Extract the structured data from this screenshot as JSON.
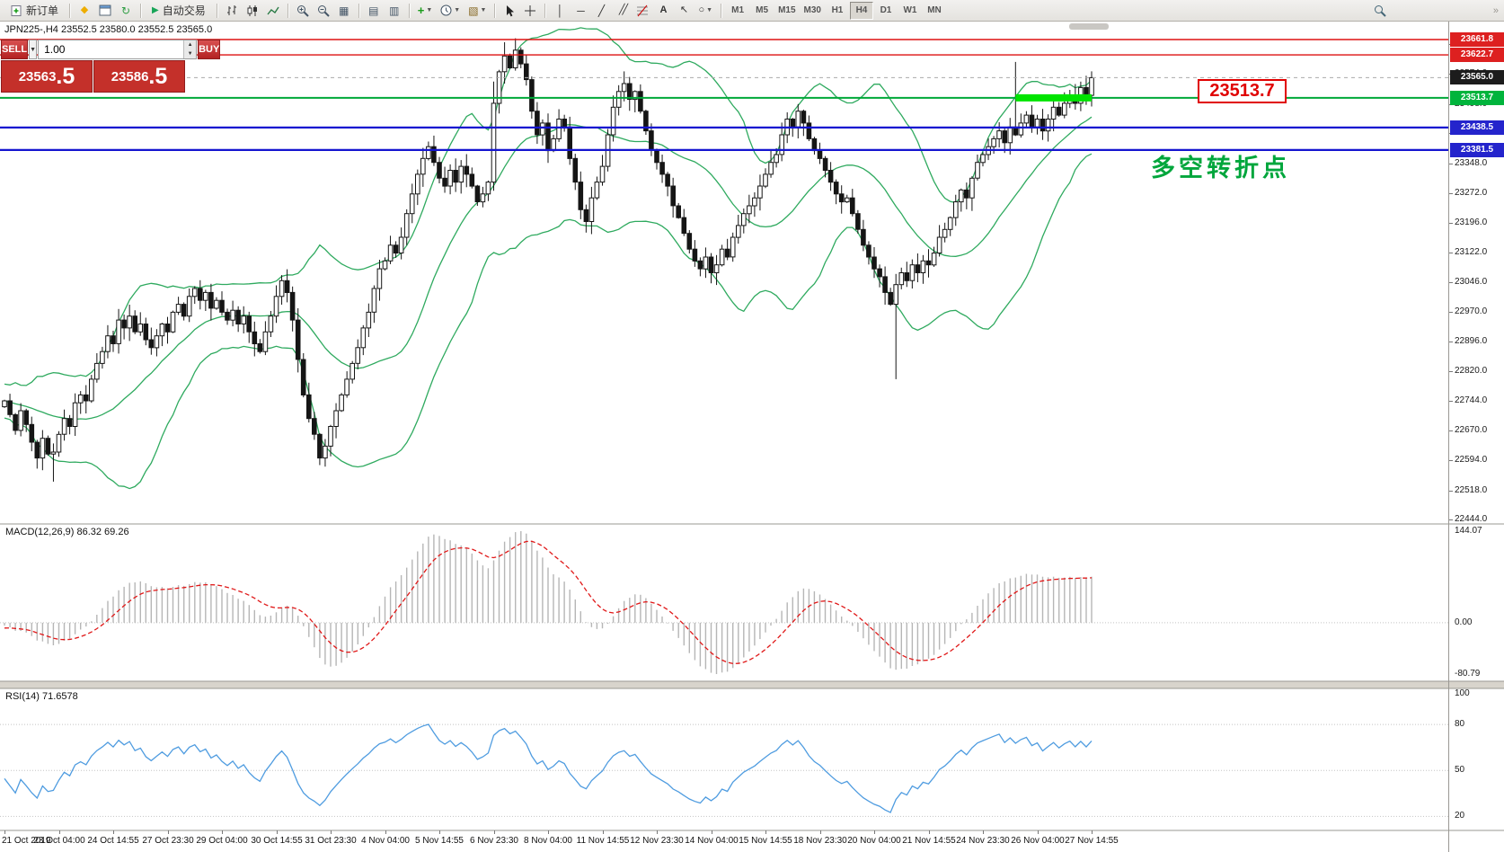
{
  "toolbar": {
    "new_order_label": "新订单",
    "auto_trading_label": "自动交易",
    "timeframes": [
      "M1",
      "M5",
      "M15",
      "M30",
      "H1",
      "H4",
      "D1",
      "W1",
      "MN"
    ],
    "active_timeframe": "H4"
  },
  "chart": {
    "symbol_info": "JPN225-,H4  23552.5 23580.0 23552.5 23565.0",
    "trade_panel": {
      "sell_label": "SELL",
      "buy_label": "BUY",
      "volume": "1.00",
      "sell_price": "23563.5",
      "buy_price": "23586.5"
    },
    "annotations": {
      "price_callout": "23513.7",
      "turning_point": "多空转折点"
    },
    "colors": {
      "bull": "#ffffff",
      "bear": "#151515",
      "outline": "#151515",
      "bollinger": "#2faa5f",
      "level_red": "#dd1111",
      "level_green": "#00a838",
      "level_blue": "#1515d0",
      "highlight_green": "#00e400",
      "callout_red": "#e00000",
      "annotation_green": "#00a63c"
    }
  },
  "chart_data": {
    "type": "candlestick",
    "symbol": "JPN225-",
    "timeframe": "H4",
    "ohlc_display": {
      "open": "23552.5",
      "high": "23580.0",
      "low": "23552.5",
      "close": "23565.0"
    },
    "ylim": [
      22444.0,
      23661.8
    ],
    "warmup_closes": [
      22790,
      22770,
      22750,
      22780,
      22760,
      22730,
      22710,
      22740,
      22720,
      22700,
      22720,
      22745,
      22725,
      22755,
      22735,
      22765,
      22745,
      22775,
      22755,
      22765
    ],
    "closes": [
      22745,
      22710,
      22670,
      22720,
      22685,
      22640,
      22600,
      22650,
      22610,
      22615,
      22660,
      22700,
      22680,
      22740,
      22760,
      22745,
      22800,
      22840,
      22870,
      22910,
      22890,
      22950,
      22930,
      22960,
      22920,
      22940,
      22900,
      22880,
      22910,
      22940,
      22920,
      22970,
      22990,
      22960,
      23010,
      23030,
      23000,
      23020,
      22980,
      23000,
      22970,
      22950,
      22975,
      22940,
      22960,
      22920,
      22890,
      22870,
      22920,
      22960,
      23010,
      23050,
      23020,
      22950,
      22850,
      22760,
      22700,
      22660,
      22600,
      22630,
      22680,
      22720,
      22760,
      22800,
      22840,
      22880,
      22930,
      22970,
      23030,
      23080,
      23100,
      23140,
      23120,
      23160,
      23220,
      23270,
      23320,
      23360,
      23390,
      23350,
      23310,
      23290,
      23330,
      23300,
      23340,
      23320,
      23290,
      23250,
      23270,
      23300,
      23500,
      23580,
      23620,
      23590,
      23635,
      23600,
      23560,
      23480,
      23420,
      23450,
      23380,
      23410,
      23460,
      23440,
      23360,
      23300,
      23230,
      23200,
      23260,
      23300,
      23340,
      23420,
      23490,
      23530,
      23550,
      23510,
      23530,
      23480,
      23430,
      23380,
      23350,
      23320,
      23290,
      23240,
      23210,
      23170,
      23130,
      23100,
      23080,
      23110,
      23070,
      23090,
      23130,
      23110,
      23160,
      23190,
      23220,
      23240,
      23260,
      23290,
      23320,
      23350,
      23370,
      23420,
      23460,
      23440,
      23480,
      23450,
      23410,
      23380,
      23360,
      23330,
      23300,
      23270,
      23250,
      23260,
      23220,
      23180,
      23140,
      23110,
      23080,
      23060,
      23020,
      22990,
      23040,
      23070,
      23050,
      23090,
      23070,
      23100,
      23090,
      23120,
      23160,
      23180,
      23210,
      23250,
      23280,
      23260,
      23310,
      23350,
      23370,
      23390,
      23410,
      23430,
      23400,
      23440,
      23420,
      23450,
      23470,
      23440,
      23460,
      23430,
      23460,
      23490,
      23470,
      23500,
      23520,
      23500,
      23540,
      23520,
      23565
    ],
    "wick_overrides": {
      "9": {
        "low": 22540
      },
      "90": {
        "high": 23555
      },
      "92": {
        "high": 23655
      },
      "94": {
        "high": 23665
      },
      "164": {
        "low": 22800
      },
      "186": {
        "high": 23605
      }
    },
    "price_axis": {
      "ticks": [
        23650.0,
        23574.0,
        23498.0,
        23424.0,
        23348.0,
        23272.0,
        23196.0,
        23122.0,
        23046.0,
        22970.0,
        22896.0,
        22820.0,
        22744.0,
        22670.0,
        22594.0,
        22518.0,
        22444.0
      ],
      "badges": [
        {
          "label": "23661.8",
          "price": 23661.8,
          "type": "red"
        },
        {
          "label": "23622.7",
          "price": 23622.7,
          "type": "red"
        },
        {
          "label": "23565.0",
          "price": 23565.0,
          "type": "current"
        },
        {
          "label": "23513.7",
          "price": 23513.7,
          "type": "green"
        },
        {
          "label": "23438.5",
          "price": 23438.5,
          "type": "blue"
        },
        {
          "label": "23381.5",
          "price": 23381.5,
          "type": "blue"
        }
      ]
    },
    "lines": [
      {
        "price": 23661.8,
        "color": "#dd1111",
        "width": 1.4
      },
      {
        "price": 23622.7,
        "color": "#dd1111",
        "width": 1.4
      },
      {
        "price": 23513.7,
        "color": "#00a838",
        "width": 2
      },
      {
        "price": 23438.5,
        "color": "#1515d0",
        "width": 2.2
      },
      {
        "price": 23381.5,
        "color": "#1515d0",
        "width": 2.2
      }
    ],
    "highlight_segment": {
      "price": 23513.7,
      "from_bar": 186,
      "to_bar": 200,
      "color": "#00e400",
      "width": 8
    },
    "indicators": {
      "bollinger": {
        "period": 20,
        "deviation": 2,
        "color": "#2faa5f"
      },
      "macd": {
        "label": "MACD(12,26,9) 86.32 69.26",
        "axis_values": [
          "144.07",
          "0.00",
          "-80.79"
        ],
        "histogram_color": "#b6b6b6",
        "signal_color": "#e01818"
      },
      "rsi": {
        "label": "RSI(14) 71.6578",
        "levels": [
          100,
          80,
          50,
          20
        ],
        "color": "#4f9ce0"
      }
    },
    "time_axis": [
      "21 Oct 2019",
      "23 Oct 04:00",
      "24 Oct 14:55",
      "27 Oct 23:30",
      "29 Oct 04:00",
      "30 Oct 14:55",
      "31 Oct 23:30",
      "4 Nov 04:00",
      "5 Nov 14:55",
      "6 Nov 23:30",
      "8 Nov 04:00",
      "11 Nov 14:55",
      "12 Nov 23:30",
      "14 Nov 04:00",
      "15 Nov 14:55",
      "18 Nov 23:30",
      "20 Nov 04:00",
      "21 Nov 14:55",
      "24 Nov 23:30",
      "26 Nov 04:00",
      "27 Nov 14:55"
    ]
  }
}
